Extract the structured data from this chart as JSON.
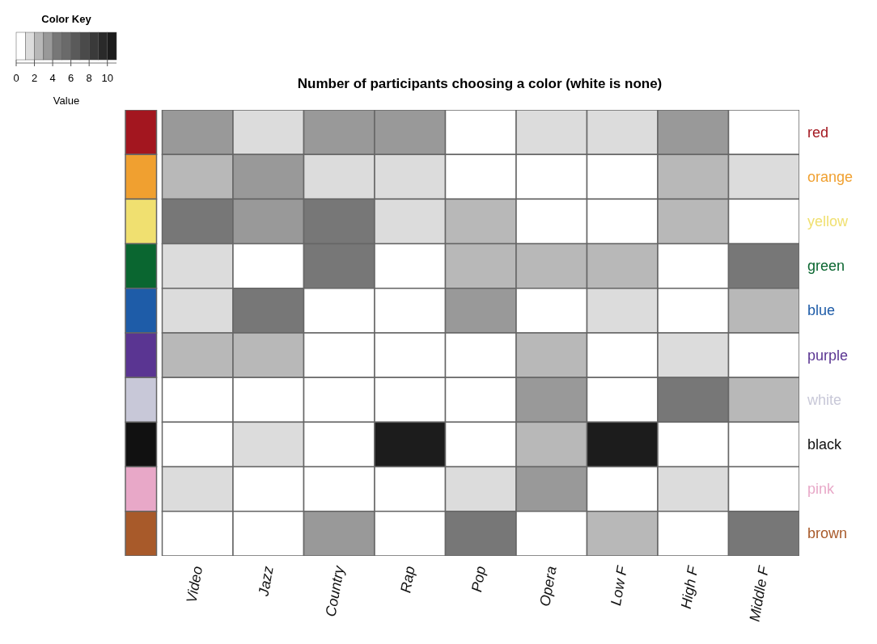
{
  "chart_data": {
    "type": "heatmap",
    "title": "Number of participants choosing a color (white is none)",
    "clabel": "Value",
    "legend_title": "Color Key",
    "categories": [
      "Video",
      "Jazz",
      "Country",
      "Rap",
      "Pop",
      "Opera",
      "Low F",
      "High F",
      "Middle F"
    ],
    "y_categories": [
      "red",
      "orange",
      "yellow",
      "green",
      "blue",
      "purple",
      "white",
      "black",
      "pink",
      "brown"
    ],
    "colors": [
      "#a3161f",
      "#f0a030",
      "#f0e070",
      "#0a6630",
      "#1e5ca8",
      "#5a3592",
      "#c8c8d8",
      "#111111",
      "#e8a8c8",
      "#a85a2a"
    ],
    "cells": [
      [
        3,
        1,
        3,
        3,
        0,
        1,
        1,
        3,
        0
      ],
      [
        2,
        3,
        1,
        1,
        0,
        0,
        0,
        2,
        1
      ],
      [
        4,
        3,
        4,
        1,
        2,
        0,
        0,
        2,
        0
      ],
      [
        1,
        0,
        4,
        0,
        2,
        2,
        2,
        0,
        4
      ],
      [
        1,
        4,
        0,
        0,
        3,
        0,
        1,
        0,
        2
      ],
      [
        2,
        2,
        0,
        0,
        0,
        2,
        0,
        1,
        0
      ],
      [
        0,
        0,
        0,
        0,
        0,
        3,
        0,
        4,
        2
      ],
      [
        0,
        1,
        0,
        10,
        0,
        2,
        10,
        0,
        0
      ],
      [
        1,
        0,
        0,
        0,
        1,
        3,
        0,
        1,
        0
      ],
      [
        0,
        0,
        3,
        0,
        4,
        0,
        2,
        0,
        4
      ]
    ],
    "clim": [
      0,
      11
    ],
    "cticks": [
      0,
      2,
      4,
      6,
      8,
      10
    ]
  }
}
